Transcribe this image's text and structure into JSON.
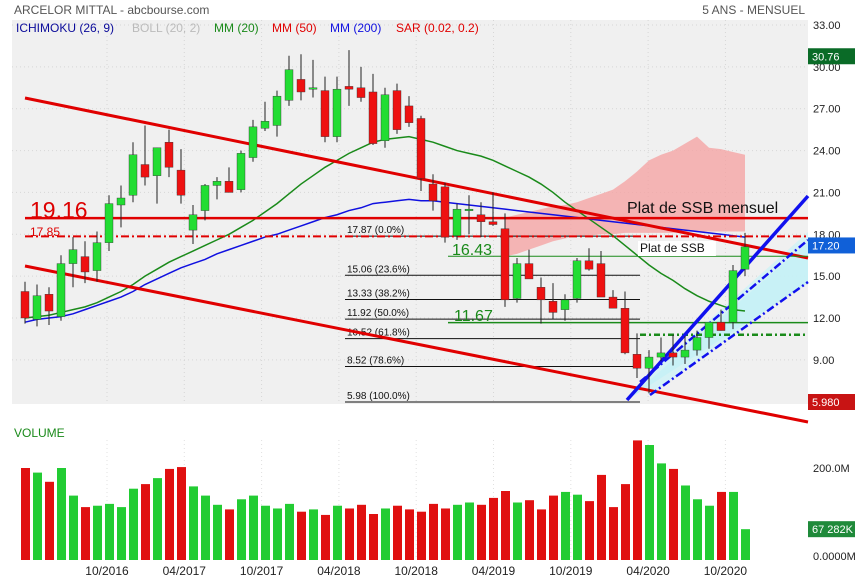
{
  "header": {
    "title": "ARCELOR MITTAL - abcbourse.com",
    "period": "5 ANS - MENSUEL"
  },
  "indicators": [
    {
      "label": "ICHIMOKU (26, 9)",
      "color": "#0b0b9a"
    },
    {
      "label": "BOLL (20, 2)",
      "color": "#bbbbbb"
    },
    {
      "label": "MM (20)",
      "color": "#1a8a1a"
    },
    {
      "label": "MM (50)",
      "color": "#e00000"
    },
    {
      "label": "MM (200)",
      "color": "#1010e0"
    },
    {
      "label": "SAR (0.02, 0.2)",
      "color": "#e00000"
    }
  ],
  "colors": {
    "up_candle": "#22dd33",
    "down_candle": "#ee1111",
    "mm20": "#1a8a1a",
    "mm50": "#1010e0",
    "trend": "#e00000",
    "channel": "#1010ee",
    "cloud": "#f5a0a0",
    "volume": "#e01010",
    "volume_up": "#22cc33"
  },
  "chart_data": {
    "type": "candlestick",
    "ylim": [
      5.98,
      33
    ],
    "y_ticks": [
      33,
      30,
      27,
      24,
      21,
      18,
      15,
      12,
      9
    ],
    "x_tick_labels": [
      "10/2016",
      "04/2017",
      "10/2017",
      "04/2018",
      "10/2018",
      "04/2019",
      "10/2019",
      "04/2020",
      "10/2020"
    ],
    "candles": [
      [
        13.9,
        14.6,
        11.6,
        12.0
      ],
      [
        11.9,
        14.4,
        11.4,
        13.6
      ],
      [
        13.7,
        14.2,
        11.5,
        12.5
      ],
      [
        12.1,
        16.5,
        11.8,
        15.9
      ],
      [
        15.9,
        17.8,
        14.2,
        16.9
      ],
      [
        16.4,
        17.5,
        14.5,
        15.3
      ],
      [
        15.4,
        18.2,
        14.6,
        17.4
      ],
      [
        17.4,
        20.8,
        16.8,
        20.2
      ],
      [
        20.1,
        21.5,
        18.5,
        20.6
      ],
      [
        20.8,
        24.6,
        20.3,
        23.7
      ],
      [
        23.0,
        25.8,
        21.5,
        22.1
      ],
      [
        22.2,
        24.2,
        20.2,
        24.2
      ],
      [
        24.6,
        25.5,
        22.1,
        22.8
      ],
      [
        22.6,
        24.1,
        20.2,
        20.8
      ],
      [
        18.3,
        20.1,
        17.3,
        19.4
      ],
      [
        19.7,
        21.6,
        19.0,
        21.5
      ],
      [
        21.5,
        22.1,
        20.5,
        21.8
      ],
      [
        21.8,
        22.8,
        21.1,
        21.0
      ],
      [
        21.2,
        24.0,
        21.0,
        23.8
      ],
      [
        23.5,
        26.2,
        23.2,
        25.7
      ],
      [
        25.6,
        27.5,
        25.4,
        26.1
      ],
      [
        25.8,
        28.3,
        25.0,
        27.9
      ],
      [
        27.6,
        30.8,
        27.2,
        29.8
      ],
      [
        29.1,
        30.9,
        27.6,
        28.2
      ],
      [
        28.5,
        30.5,
        27.8,
        28.5
      ],
      [
        28.3,
        29.3,
        24.6,
        25.0
      ],
      [
        25.0,
        29.3,
        24.6,
        28.4
      ],
      [
        28.6,
        31.2,
        27.2,
        28.4
      ],
      [
        28.5,
        30.0,
        27.5,
        27.8
      ],
      [
        28.2,
        29.5,
        24.4,
        24.5
      ],
      [
        24.7,
        28.5,
        24.2,
        28.0
      ],
      [
        28.3,
        28.8,
        25.2,
        25.5
      ],
      [
        27.2,
        27.9,
        25.7,
        26.0
      ],
      [
        26.3,
        26.5,
        21.1,
        22.0
      ],
      [
        21.6,
        22.3,
        19.7,
        20.4
      ],
      [
        21.4,
        21.7,
        17.4,
        17.8
      ],
      [
        17.9,
        20.2,
        17.6,
        19.8
      ],
      [
        19.8,
        20.8,
        18.0,
        19.8
      ],
      [
        19.4,
        20.3,
        17.8,
        18.9
      ],
      [
        18.9,
        21.0,
        18.6,
        18.7
      ],
      [
        18.4,
        19.5,
        12.8,
        13.3
      ],
      [
        13.4,
        16.3,
        13.1,
        15.9
      ],
      [
        15.9,
        16.9,
        14.9,
        14.8
      ],
      [
        14.2,
        14.9,
        11.6,
        13.3
      ],
      [
        13.2,
        14.5,
        11.9,
        12.4
      ],
      [
        12.6,
        13.7,
        11.8,
        13.3
      ],
      [
        13.4,
        16.3,
        13.1,
        16.1
      ],
      [
        16.1,
        17.0,
        15.4,
        15.5
      ],
      [
        15.9,
        16.8,
        13.6,
        13.5
      ],
      [
        13.5,
        14.0,
        12.8,
        12.7
      ],
      [
        12.7,
        13.9,
        9.4,
        9.5
      ],
      [
        9.4,
        10.9,
        7.7,
        8.4
      ],
      [
        8.4,
        9.7,
        6.6,
        9.2
      ],
      [
        9.2,
        10.6,
        8.9,
        9.5
      ],
      [
        9.5,
        10.8,
        8.6,
        9.2
      ],
      [
        9.2,
        10.7,
        8.7,
        9.7
      ],
      [
        9.7,
        11.1,
        9.3,
        10.6
      ],
      [
        10.6,
        11.5,
        9.8,
        11.7
      ],
      [
        11.7,
        12.6,
        11.1,
        11.1
      ],
      [
        11.7,
        15.8,
        11.2,
        15.4
      ],
      [
        15.5,
        18.1,
        15.0,
        17.1
      ]
    ],
    "mm20": [
      12.0,
      12.1,
      12.2,
      12.4,
      12.6,
      12.8,
      13.1,
      13.5,
      13.9,
      14.4,
      15.0,
      15.5,
      16.0,
      16.4,
      16.8,
      17.2,
      17.6,
      18.0,
      18.5,
      19.0,
      19.6,
      20.2,
      20.9,
      21.6,
      22.2,
      22.8,
      23.3,
      23.8,
      24.2,
      24.6,
      24.8,
      24.9,
      25.0,
      24.8,
      24.6,
      24.3,
      24.0,
      23.8,
      23.6,
      23.3,
      22.9,
      22.5,
      22.1,
      21.6,
      21.0,
      20.3,
      19.7,
      19.1,
      18.5,
      17.9,
      17.2,
      16.5,
      15.8,
      15.2,
      14.7,
      14.1,
      13.6,
      13.2,
      12.9,
      12.6,
      12.5
    ],
    "mm50": [
      11.7,
      11.9,
      12.0,
      12.1,
      12.3,
      12.6,
      12.9,
      13.2,
      13.5,
      13.9,
      14.4,
      14.8,
      15.2,
      15.6,
      15.9,
      16.2,
      16.6,
      16.9,
      17.2,
      17.5,
      17.8,
      18.0,
      18.3,
      18.6,
      18.9,
      19.2,
      19.4,
      19.7,
      19.9,
      20.2,
      20.3,
      20.4,
      20.5,
      20.4,
      20.4,
      20.3,
      20.2,
      20.1,
      20.0,
      19.9,
      19.8,
      19.7,
      19.6,
      19.5,
      19.4,
      19.3,
      19.2,
      19.1,
      19.0,
      18.9,
      18.8,
      18.7,
      18.6,
      18.5,
      18.4,
      18.3,
      18.2,
      18.1,
      18.0,
      17.9,
      17.8
    ],
    "cloud_top": [
      null,
      null,
      null,
      null,
      null,
      null,
      null,
      null,
      null,
      null,
      null,
      null,
      null,
      null,
      null,
      null,
      null,
      null,
      null,
      null,
      null,
      null,
      null,
      null,
      null,
      null,
      null,
      null,
      null,
      null,
      null,
      null,
      null,
      null,
      null,
      null,
      null,
      null,
      null,
      null,
      19.2,
      19.4,
      19.6,
      19.8,
      20.0,
      20.1,
      20.3,
      20.6,
      20.9,
      21.2,
      21.8,
      22.5,
      23.3,
      23.7,
      24.0,
      24.5,
      25.0,
      24.2,
      24.1,
      23.9,
      23.7
    ],
    "cloud_bottom": [
      null,
      null,
      null,
      null,
      null,
      null,
      null,
      null,
      null,
      null,
      null,
      null,
      null,
      null,
      null,
      null,
      null,
      null,
      null,
      null,
      null,
      null,
      null,
      null,
      null,
      null,
      null,
      null,
      null,
      null,
      null,
      null,
      null,
      null,
      null,
      null,
      null,
      null,
      null,
      null,
      16.4,
      16.6,
      16.9,
      17.2,
      17.5,
      17.7,
      17.9,
      17.9,
      18.0,
      18.0,
      18.1,
      18.1,
      18.1,
      18.1,
      18.1,
      18.2,
      18.2,
      18.2,
      18.2,
      18.2,
      18.2
    ],
    "volume_ylim": [
      0,
      280
    ],
    "volume_ticks": [
      "200.0M",
      "0.0000M"
    ],
    "volume_last_label": "67 282K",
    "volumes": [
      200,
      190,
      170,
      200,
      140,
      115,
      118,
      122,
      115,
      155,
      165,
      178,
      198,
      202,
      160,
      140,
      120,
      110,
      132,
      140,
      118,
      112,
      122,
      105,
      110,
      98,
      118,
      112,
      120,
      100,
      112,
      118,
      110,
      105,
      122,
      112,
      120,
      125,
      120,
      135,
      150,
      125,
      130,
      110,
      140,
      148,
      142,
      128,
      185,
      115,
      165,
      260,
      250,
      210,
      198,
      162,
      132,
      118,
      148,
      148,
      67
    ],
    "price_tags": [
      {
        "value": 30.76,
        "text": "30.76",
        "color": "#0a6b27"
      },
      {
        "value": 17.2,
        "text": "17.20",
        "color": "#1060d8"
      },
      {
        "value": 5.98,
        "text": "5.980",
        "color": "#c81414"
      }
    ],
    "fib_levels": [
      {
        "value": 17.87,
        "text": "17.87  (0.0%)"
      },
      {
        "value": 15.06,
        "text": "15.06  (23.6%)"
      },
      {
        "value": 13.33,
        "text": "13.33  (38.2%)"
      },
      {
        "value": 11.92,
        "text": "11.92  (50.0%)"
      },
      {
        "value": 10.52,
        "text": "10.52  (61.8%)"
      },
      {
        "value": 8.52,
        "text": "8.52  (78.6%)"
      },
      {
        "value": 5.98,
        "text": "5.98  (100.0%)"
      }
    ],
    "annotations": {
      "level_19_16": "19.16",
      "level_17_85": "17.85",
      "level_16_43": "16.43",
      "level_11_67": "11.67",
      "ssb_mensuel": "Plat de SSB mensuel",
      "ssb": "Plat de SSB"
    }
  },
  "volume_title": "VOLUME"
}
